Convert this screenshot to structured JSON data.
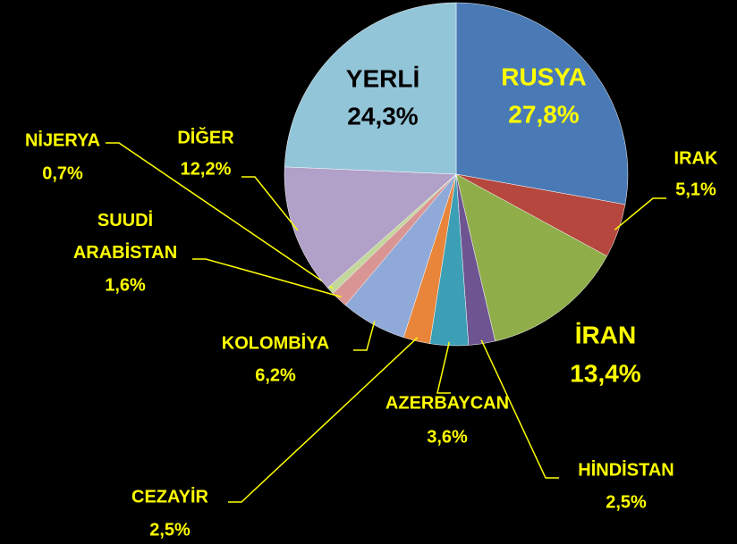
{
  "chart_data": {
    "type": "pie",
    "categories": [
      "RUSYA",
      "IRAK",
      "İRAN",
      "HİNDİSTAN",
      "AZERBAYCAN",
      "CEZAYİR",
      "KOLOMBİYA",
      "SUUDİ ARABİSTAN",
      "NİJERYA",
      "DİĞER",
      "YERLİ"
    ],
    "values": [
      27.8,
      5.1,
      13.4,
      2.5,
      3.6,
      2.5,
      6.2,
      1.6,
      0.7,
      12.2,
      24.3
    ],
    "value_labels": [
      "27,8%",
      "5,1%",
      "13,4%",
      "2,5%",
      "3,6%",
      "2,5%",
      "6,2%",
      "1,6%",
      "0,7%",
      "12,2%",
      "24,3%"
    ],
    "colors": [
      "#4a7ab5",
      "#b5473f",
      "#8fae4a",
      "#6e5591",
      "#3c9fb5",
      "#e8853a",
      "#8fa9d8",
      "#d99594",
      "#c3d69b",
      "#b1a0c7",
      "#93c5d9"
    ]
  }
}
